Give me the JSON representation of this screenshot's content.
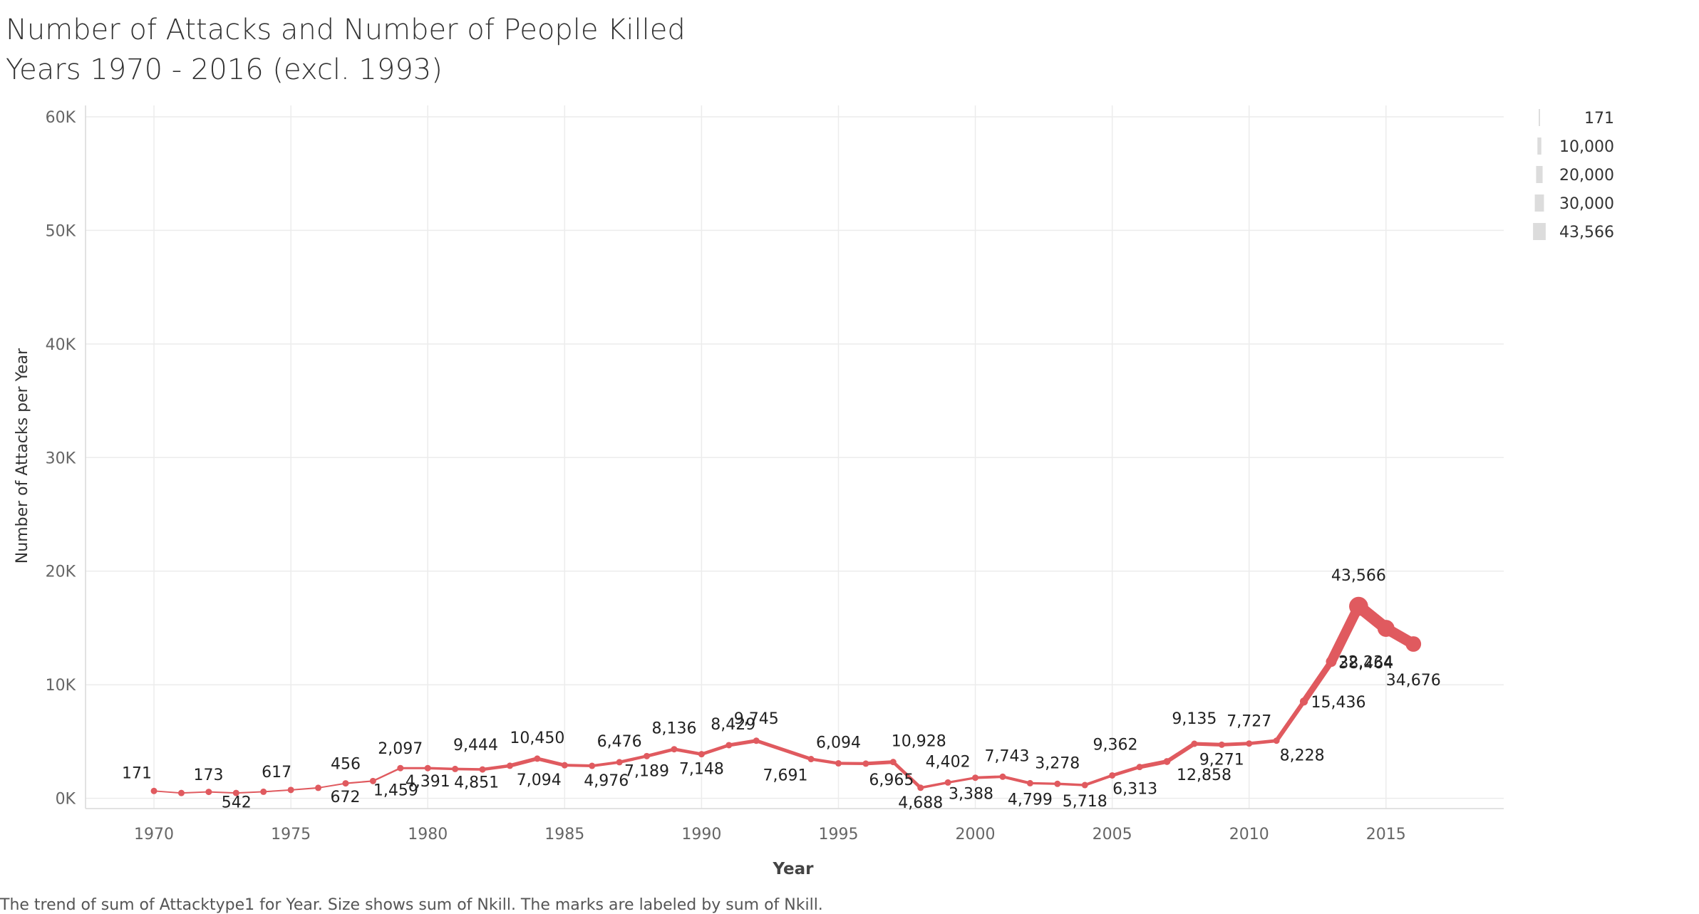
{
  "title_line1": "Number of Attacks and Number of People Killed",
  "title_line2": "Years 1970 - 2016 (excl. 1993)",
  "caption": "The trend of sum of Attacktype1 for Year.  Size shows sum of Nkill.  The marks are labeled by sum of Nkill.",
  "colors": {
    "line": "#e05a5f",
    "grid": "#ececec",
    "axis_text": "#666666",
    "label_text": "#222222",
    "legend_mark": "#dcdcdc"
  },
  "chart_data": {
    "type": "line",
    "xlabel": "Year",
    "ylabel": "Number of Attacks per Year",
    "xlim": [
      1967.5,
      2019.3
    ],
    "ylim": [
      -900,
      61000
    ],
    "x_ticks": [
      1970,
      1975,
      1980,
      1985,
      1990,
      1995,
      2000,
      2005,
      2010,
      2015
    ],
    "x_tick_labels": [
      "1970",
      "1975",
      "1980",
      "1985",
      "1990",
      "1995",
      "2000",
      "2005",
      "2010",
      "2015"
    ],
    "y_ticks": [
      0,
      10000,
      20000,
      30000,
      40000,
      50000,
      60000
    ],
    "y_tick_labels": [
      "0K",
      "10K",
      "20K",
      "30K",
      "40K",
      "50K",
      "60K"
    ],
    "grid": true,
    "size_encoding": "sum of Nkill",
    "series": [
      {
        "x": [
          1970,
          1971,
          1972,
          1973,
          1974,
          1975,
          1976,
          1977,
          1978,
          1979,
          1980,
          1981,
          1982,
          1983,
          1984,
          1985,
          1986,
          1987,
          1988,
          1989,
          1990,
          1991,
          1992,
          1994,
          1995,
          1996,
          1997,
          1998,
          1999,
          2000,
          2001,
          2002,
          2003,
          2004,
          2005,
          2006,
          2007,
          2008,
          2009,
          2010,
          2011,
          2012,
          2013,
          2014,
          2015,
          2016
        ],
        "y": [
          651,
          471,
          568,
          473,
          581,
          740,
          923,
          1319,
          1526,
          2662,
          2662,
          2586,
          2544,
          2870,
          3495,
          2915,
          2860,
          3183,
          3720,
          4324,
          3887,
          4683,
          5071,
          3456,
          3081,
          3058,
          3197,
          934,
          1395,
          1814,
          1906,
          1333,
          1278,
          1166,
          2017,
          2758,
          3242,
          4805,
          4721,
          4826,
          5076,
          8522,
          12036,
          16903,
          14965,
          13587
        ],
        "labels": [
          "171",
          "173",
          "",
          "",
          "542",
          "617",
          "672",
          "456",
          "1,459",
          "2,097",
          "4,391",
          "4,851",
          "",
          "9,444",
          "10,450",
          "7,094",
          "4,976",
          "6,476",
          "7,189",
          "8,136",
          "7,148",
          "8,429",
          "9,745",
          "7,691",
          "6,094",
          "6,965",
          "10,928",
          "4,688",
          "4,402",
          "3,388",
          "7,743",
          "4,799",
          "3,278",
          "5,718",
          "6,313",
          "9,362",
          "12,858",
          "9,135",
          "9,271",
          "7,727",
          "8,228",
          "15,436",
          "22,234",
          "43,566",
          "38,464",
          "34,676"
        ],
        "size": [
          171,
          173,
          566,
          370,
          542,
          617,
          672,
          456,
          1459,
          2097,
          4391,
          4851,
          5136,
          9444,
          10450,
          7094,
          4976,
          6476,
          7189,
          8136,
          7148,
          8429,
          9745,
          7691,
          6094,
          6965,
          10928,
          4688,
          4402,
          3388,
          7743,
          4799,
          3278,
          5718,
          6313,
          9362,
          12858,
          9135,
          9271,
          7727,
          8228,
          15436,
          22234,
          43566,
          38464,
          34676
        ]
      }
    ],
    "legend": {
      "position": "top-right",
      "entries": [
        "171",
        "10,000",
        "20,000",
        "30,000",
        "43,566"
      ],
      "values": [
        171,
        10000,
        20000,
        30000,
        43566
      ]
    }
  }
}
